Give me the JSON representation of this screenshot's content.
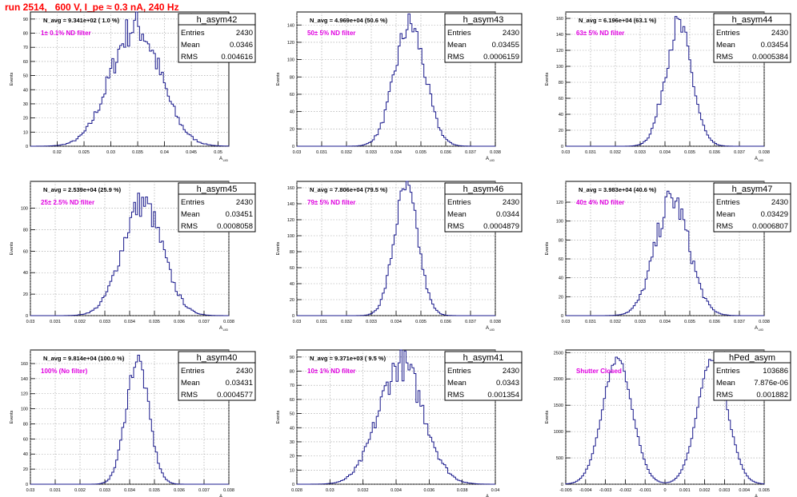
{
  "run_title": "run 2514,   600 V, I_pe ≈ 0.3 nA, 240 Hz",
  "colors": {
    "hist": "#1a1a8c",
    "filter_label": "#e000e0",
    "title": "#ff0000",
    "grid": "#9a9a9a"
  },
  "chart_data": [
    {
      "type": "histogram",
      "name": "h_asym42",
      "stats": {
        "entries": "2430",
        "mean": "0.0346",
        "rms": "0.004616"
      },
      "navg": "N_avg = 9.341e+02 ( 1.0 %)",
      "filter": "1± 0.1% ND filter",
      "ylabel": "Events",
      "xlabel": "A",
      "x_ticks": [
        "0.02",
        "0.025",
        "0.03",
        "0.035",
        "0.04",
        "0.045",
        "0.05"
      ],
      "y_ticks": [
        "0",
        "10",
        "20",
        "30",
        "40",
        "50",
        "60",
        "70",
        "80",
        "90"
      ],
      "xlim": [
        0.015,
        0.052
      ],
      "ylim": [
        0,
        95
      ],
      "grid": true,
      "gauss": {
        "mean": 0.0346,
        "sigma": 0.004616,
        "peak": 85,
        "jitter": 0.15
      }
    },
    {
      "type": "histogram",
      "name": "h_asym43",
      "stats": {
        "entries": "2430",
        "mean": "0.03455",
        "rms": "0.0006159"
      },
      "navg": "N_avg = 4.969e+04 (50.6 %)",
      "filter": "50± 5% ND filter",
      "ylabel": "Events",
      "xlabel": "A",
      "x_ticks": [
        "0.03",
        "0.031",
        "0.032",
        "0.033",
        "0.034",
        "0.035",
        "0.036",
        "0.037",
        "0.038"
      ],
      "y_ticks": [
        "0",
        "20",
        "40",
        "60",
        "80",
        "100",
        "120",
        "140"
      ],
      "xlim": [
        0.03,
        0.038
      ],
      "ylim": [
        0,
        155
      ],
      "grid": true,
      "gauss": {
        "mean": 0.03455,
        "sigma": 0.0006159,
        "peak": 140,
        "jitter": 0.12
      }
    },
    {
      "type": "histogram",
      "name": "h_asym44",
      "stats": {
        "entries": "2430",
        "mean": "0.03454",
        "rms": "0.0005384"
      },
      "navg": "N_avg = 6.196e+04 (63.1 %)",
      "filter": "63± 5% ND filter",
      "ylabel": "Events",
      "xlabel": "A",
      "x_ticks": [
        "0.03",
        "0.031",
        "0.032",
        "0.033",
        "0.034",
        "0.035",
        "0.036",
        "0.037",
        "0.038"
      ],
      "y_ticks": [
        "0",
        "20",
        "40",
        "60",
        "80",
        "100",
        "120",
        "140",
        "160"
      ],
      "xlim": [
        0.03,
        0.038
      ],
      "ylim": [
        0,
        168
      ],
      "grid": true,
      "gauss": {
        "mean": 0.03454,
        "sigma": 0.0005384,
        "peak": 150,
        "jitter": 0.12
      }
    },
    {
      "type": "histogram",
      "name": "h_asym45",
      "stats": {
        "entries": "2430",
        "mean": "0.03451",
        "rms": "0.0008058"
      },
      "navg": "N_avg = 2.539e+04 (25.9 %)",
      "filter": "25± 2.5% ND filter",
      "ylabel": "Events",
      "xlabel": "A",
      "x_ticks": [
        "0.03",
        "0.031",
        "0.032",
        "0.033",
        "0.034",
        "0.035",
        "0.036",
        "0.037",
        "0.038"
      ],
      "y_ticks": [
        "0",
        "20",
        "40",
        "60",
        "80",
        "100"
      ],
      "xlim": [
        0.03,
        0.038
      ],
      "ylim": [
        0,
        125
      ],
      "grid": true,
      "gauss": {
        "mean": 0.03451,
        "sigma": 0.0008058,
        "peak": 105,
        "jitter": 0.13
      }
    },
    {
      "type": "histogram",
      "name": "h_asym46",
      "stats": {
        "entries": "2430",
        "mean": "0.0344",
        "rms": "0.0004879"
      },
      "navg": "N_avg = 7.806e+04 (79.5 %)",
      "filter": "79± 5% ND filter",
      "ylabel": "Events",
      "xlabel": "A",
      "x_ticks": [
        "0.03",
        "0.031",
        "0.032",
        "0.033",
        "0.034",
        "0.035",
        "0.036",
        "0.037",
        "0.038"
      ],
      "y_ticks": [
        "0",
        "20",
        "40",
        "60",
        "80",
        "100",
        "120",
        "140",
        "160"
      ],
      "xlim": [
        0.03,
        0.038
      ],
      "ylim": [
        0,
        168
      ],
      "grid": true,
      "gauss": {
        "mean": 0.0344,
        "sigma": 0.0004879,
        "peak": 158,
        "jitter": 0.1
      }
    },
    {
      "type": "histogram",
      "name": "h_asym47",
      "stats": {
        "entries": "2430",
        "mean": "0.03429",
        "rms": "0.0006807"
      },
      "navg": "N_avg = 3.983e+04 (40.6 %)",
      "filter": "40± 4% ND filter",
      "ylabel": "Events",
      "xlabel": "A",
      "x_ticks": [
        "0.03",
        "0.031",
        "0.032",
        "0.033",
        "0.034",
        "0.035",
        "0.036",
        "0.037",
        "0.038"
      ],
      "y_ticks": [
        "0",
        "20",
        "40",
        "60",
        "80",
        "100",
        "120"
      ],
      "xlim": [
        0.03,
        0.038
      ],
      "ylim": [
        0,
        142
      ],
      "grid": true,
      "gauss": {
        "mean": 0.03429,
        "sigma": 0.0006807,
        "peak": 123,
        "jitter": 0.13
      }
    },
    {
      "type": "histogram",
      "name": "h_asym40",
      "stats": {
        "entries": "2430",
        "mean": "0.03431",
        "rms": "0.0004577"
      },
      "navg": "N_avg = 9.814e+04 (100.0 %)",
      "filter": "100% (No filter)",
      "ylabel": "Events",
      "xlabel": "A",
      "x_ticks": [
        "0.03",
        "0.031",
        "0.032",
        "0.033",
        "0.034",
        "0.035",
        "0.036",
        "0.037",
        "0.038"
      ],
      "y_ticks": [
        "0",
        "20",
        "40",
        "60",
        "80",
        "100",
        "120",
        "140",
        "160"
      ],
      "xlim": [
        0.03,
        0.038
      ],
      "ylim": [
        0,
        178
      ],
      "grid": true,
      "gauss": {
        "mean": 0.03431,
        "sigma": 0.0004577,
        "peak": 165,
        "jitter": 0.08
      }
    },
    {
      "type": "histogram",
      "name": "h_asym41",
      "stats": {
        "entries": "2430",
        "mean": "0.0343",
        "rms": "0.001354"
      },
      "navg": "N_avg = 9.371e+03 ( 9.5 %)",
      "filter": "10± 1% ND filter",
      "ylabel": "Events",
      "xlabel": "A",
      "x_ticks": [
        "0.028",
        "0.03",
        "0.032",
        "0.034",
        "0.036",
        "0.038",
        "0.04"
      ],
      "y_ticks": [
        "0",
        "10",
        "20",
        "30",
        "40",
        "50",
        "60",
        "70",
        "80",
        "90"
      ],
      "xlim": [
        0.028,
        0.04
      ],
      "ylim": [
        0,
        95
      ],
      "grid": true,
      "gauss": {
        "mean": 0.0343,
        "sigma": 0.001354,
        "peak": 85,
        "jitter": 0.14
      }
    },
    {
      "type": "histogram",
      "name": "hPed_asym",
      "stats": {
        "entries": "103686",
        "mean": "7.876e-06",
        "rms": "0.001882"
      },
      "navg": "",
      "filter": "Shutter Closed",
      "ylabel": "Events",
      "xlabel": "A",
      "x_ticks": [
        "-0.005",
        "-0.004",
        "-0.003",
        "-0.002",
        "-0.001",
        "0",
        "0.001",
        "0.002",
        "0.003",
        "0.004",
        "0.005"
      ],
      "y_ticks": [
        "0",
        "500",
        "1000",
        "1500",
        "2000",
        "2500"
      ],
      "xlim": [
        -0.005,
        0.005
      ],
      "ylim": [
        0,
        2550
      ],
      "grid": true,
      "bimodal": {
        "mean": 0.0,
        "sep": 0.0024,
        "sigma": 0.00075,
        "peak": 2370,
        "jitter": 0.025
      }
    }
  ]
}
